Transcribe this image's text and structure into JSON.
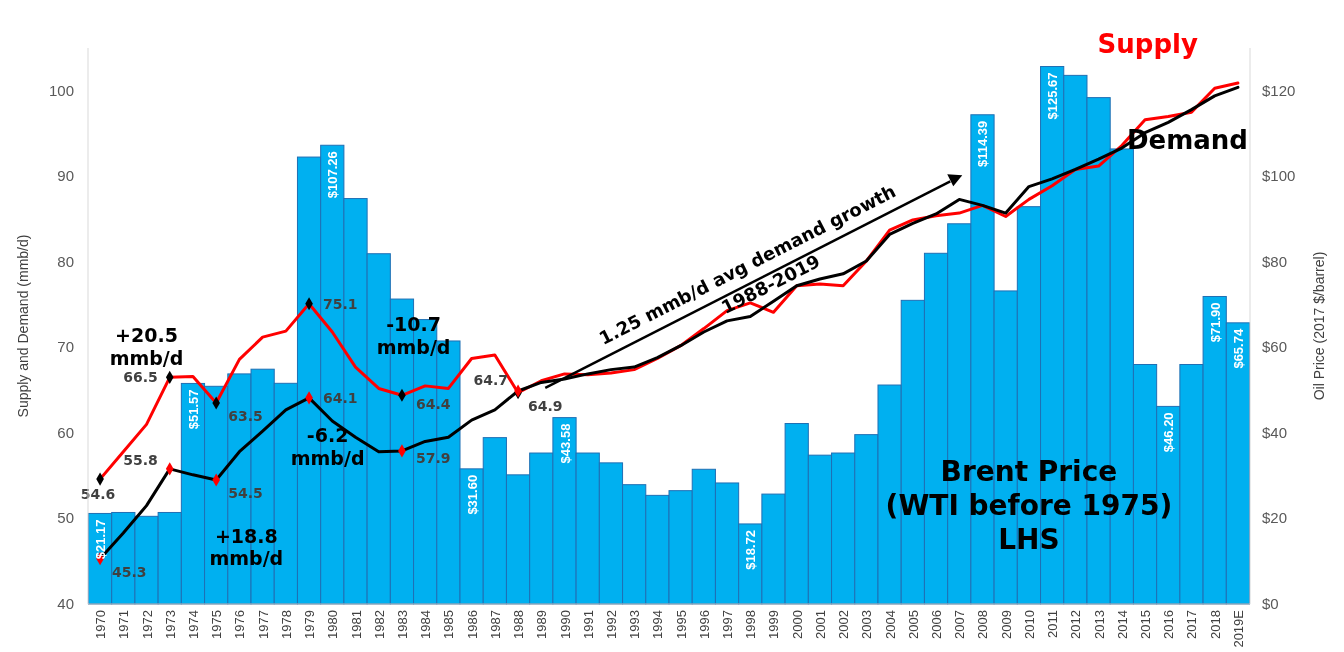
{
  "chart_data": {
    "type": "bar",
    "ylabel": "Supply and Demand (mmb/d)",
    "y2label": "Oil Price  (2017 $/barrel)",
    "categories": [
      "1970",
      "1971",
      "1972",
      "1973",
      "1974",
      "1975",
      "1976",
      "1977",
      "1978",
      "1979",
      "1980",
      "1981",
      "1982",
      "1983",
      "1984",
      "1985",
      "1986",
      "1987",
      "1988",
      "1989",
      "1990",
      "1991",
      "1992",
      "1993",
      "1994",
      "1995",
      "1996",
      "1997",
      "1998",
      "1999",
      "2000",
      "2001",
      "2002",
      "2003",
      "2004",
      "2005",
      "2006",
      "2007",
      "2008",
      "2009",
      "2010",
      "2011",
      "2012",
      "2013",
      "2014",
      "2015",
      "2016",
      "2017",
      "2018",
      "2019E"
    ],
    "ylim": [
      40,
      105
    ],
    "yticks": [
      40,
      50,
      60,
      70,
      80,
      90,
      100
    ],
    "y2lim": [
      0,
      130
    ],
    "y2ticks": [
      {
        "value": 0,
        "label": "$0"
      },
      {
        "value": 20,
        "label": "$20"
      },
      {
        "value": 40,
        "label": "$40"
      },
      {
        "value": 60,
        "label": "$60"
      },
      {
        "value": 80,
        "label": "$80"
      },
      {
        "value": 100,
        "label": "$100"
      },
      {
        "value": 120,
        "label": "$120"
      }
    ],
    "series": [
      {
        "axis": "y2",
        "color": "#00b0f0",
        "values": [
          21.17,
          21.4,
          20.5,
          21.4,
          51.57,
          50.9,
          53.8,
          54.9,
          51.6,
          104.5,
          107.26,
          94.8,
          81.9,
          71.3,
          66.5,
          61.5,
          31.6,
          38.9,
          30.2,
          35.3,
          43.58,
          35.3,
          33.0,
          27.9,
          25.4,
          26.5,
          31.5,
          28.3,
          18.72,
          25.7,
          42.2,
          34.8,
          35.3,
          39.6,
          51.2,
          71.0,
          82.0,
          88.9,
          114.39,
          73.2,
          92.9,
          125.67,
          123.6,
          118.4,
          106.4,
          56.0,
          46.2,
          56.0,
          71.9,
          65.74
        ],
        "value_labels": [
          "$21.17",
          null,
          null,
          null,
          "$51.57",
          null,
          null,
          null,
          null,
          null,
          "$107.26",
          null,
          null,
          null,
          null,
          null,
          "$31.60",
          null,
          null,
          null,
          "$43.58",
          null,
          null,
          null,
          null,
          null,
          null,
          null,
          "$18.72",
          null,
          null,
          null,
          null,
          null,
          null,
          null,
          null,
          null,
          "$114.39",
          null,
          null,
          "$125.67",
          null,
          null,
          null,
          null,
          "$46.20",
          null,
          "$71.90",
          "$65.74"
        ]
      },
      {
        "type": "line",
        "name": "Supply",
        "color": "#ff0000",
        "values": [
          54.6,
          57.8,
          61.0,
          66.5,
          66.6,
          63.5,
          68.6,
          71.2,
          71.9,
          75.1,
          71.8,
          67.7,
          65.2,
          64.4,
          65.5,
          65.2,
          68.7,
          69.1,
          64.7,
          66.1,
          66.9,
          66.8,
          67.0,
          67.4,
          68.7,
          70.2,
          72.2,
          74.3,
          75.2,
          74.1,
          77.2,
          77.4,
          77.2,
          80.1,
          83.7,
          84.9,
          85.4,
          85.7,
          86.6,
          85.3,
          87.3,
          88.9,
          90.8,
          91.2,
          93.6,
          96.6,
          97.0,
          97.5,
          100.3,
          100.9
        ],
        "value_labels": [
          "54.6",
          null,
          null,
          "66.5",
          null,
          "63.5",
          null,
          null,
          null,
          "75.1",
          null,
          null,
          null,
          "64.4",
          null,
          null,
          null,
          null,
          "64.7",
          null,
          null,
          null,
          null,
          null,
          null,
          null,
          null,
          null,
          null,
          null,
          null,
          null,
          null,
          null,
          null,
          null,
          null,
          null,
          null,
          null,
          null,
          null,
          null,
          null,
          null,
          null,
          null,
          null,
          null,
          null
        ]
      },
      {
        "type": "line",
        "name": "Demand",
        "color": "#000000",
        "values": [
          45.3,
          48.3,
          51.5,
          55.8,
          55.1,
          54.5,
          57.8,
          60.2,
          62.7,
          64.1,
          61.4,
          59.5,
          57.8,
          57.9,
          59.0,
          59.5,
          61.5,
          62.7,
          64.9,
          65.9,
          66.3,
          66.9,
          67.4,
          67.7,
          68.8,
          70.2,
          71.8,
          73.1,
          73.6,
          75.4,
          77.2,
          78.0,
          78.6,
          80.1,
          83.2,
          84.5,
          85.6,
          87.3,
          86.6,
          85.7,
          88.8,
          89.7,
          90.8,
          92.0,
          93.3,
          95.1,
          96.3,
          97.8,
          99.4,
          100.4
        ],
        "value_labels": [
          "45.3",
          null,
          null,
          "55.8",
          null,
          "54.5",
          null,
          null,
          null,
          "64.1",
          null,
          null,
          null,
          "57.9",
          null,
          null,
          null,
          null,
          "64.9",
          null,
          null,
          null,
          null,
          null,
          null,
          null,
          null,
          null,
          null,
          null,
          null,
          null,
          null,
          null,
          null,
          null,
          null,
          null,
          null,
          null,
          null,
          null,
          null,
          null,
          null,
          null,
          null,
          null,
          null,
          null
        ]
      }
    ],
    "annotations": [
      "+20.5\nmmb/d",
      "+18.8\nmmb/d",
      "-10.7\nmmb/d",
      "-6.2\nmmb/d",
      "1.25 mmb/d avg demand growth",
      "1988-2019",
      "Brent Price\n(WTI before 1975)\nLHS"
    ]
  }
}
